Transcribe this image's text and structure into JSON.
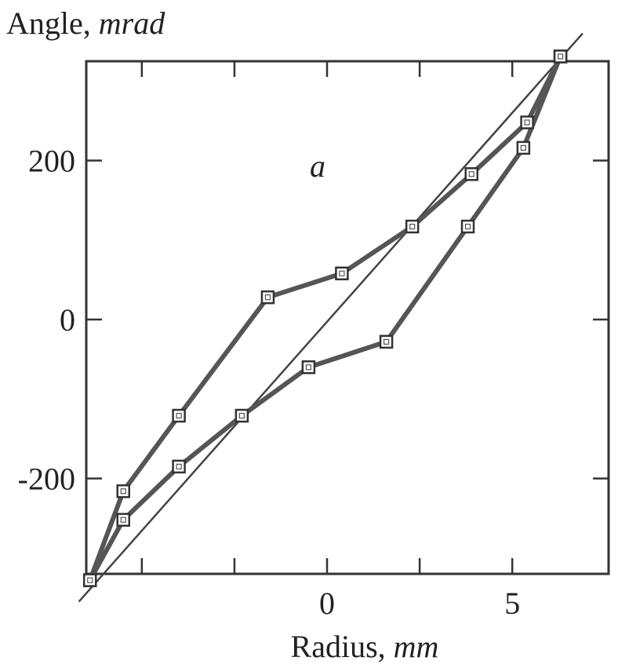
{
  "chart_data": {
    "type": "line",
    "y_axis_title": "Angle, ",
    "y_axis_unit": "mrad",
    "x_axis_title": "Radius, ",
    "x_axis_unit": "mm",
    "panel_label": "a",
    "xlim": [
      -6.5,
      7.6
    ],
    "ylim": [
      -320,
      325
    ],
    "x_ticks": [
      0,
      5
    ],
    "y_ticks": [
      -200,
      0,
      200
    ],
    "x_tick_labels": [
      "0",
      "5"
    ],
    "y_tick_labels": [
      "-200",
      "0",
      "200"
    ],
    "series": [
      {
        "x": [
          -6.4,
          -5.5,
          -4.0,
          -1.6,
          0.4,
          2.3,
          3.9,
          5.4,
          6.3
        ],
        "y": [
          -328,
          -216,
          -121,
          28,
          58,
          117,
          183,
          248,
          331
        ],
        "color": "#555555"
      },
      {
        "x": [
          -6.4,
          -5.5,
          -4.0,
          -2.3,
          -0.5,
          1.6,
          3.8,
          5.3,
          6.3
        ],
        "y": [
          -328,
          -252,
          -185,
          -121,
          -60,
          -28,
          117,
          216,
          331
        ],
        "color": "#555555"
      }
    ],
    "fit_line": {
      "x": [
        -6.7,
        6.9
      ],
      "y": [
        -355,
        360
      ]
    },
    "grid": false,
    "legend": "none"
  }
}
